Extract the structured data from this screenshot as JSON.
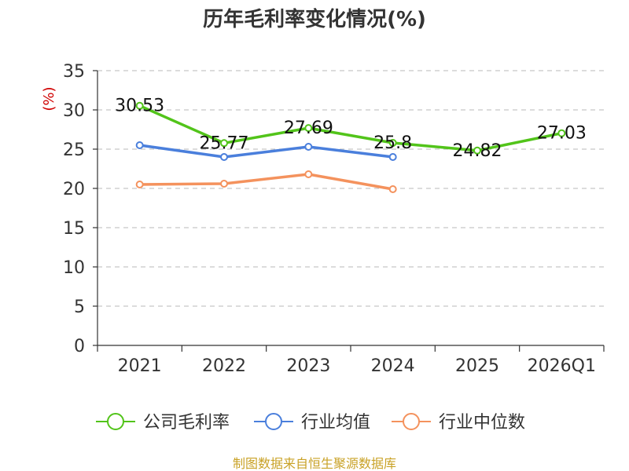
{
  "chart_data": {
    "type": "line",
    "title": "历年毛利率变化情况(%)",
    "ylabel": "(%)",
    "xlabel": "",
    "ylim": [
      0,
      35
    ],
    "yticks": [
      0,
      5,
      10,
      15,
      20,
      25,
      30,
      35
    ],
    "categories": [
      "2021",
      "2022",
      "2023",
      "2024",
      "2025",
      "2026Q1"
    ],
    "grid": true,
    "legend_position": "bottom",
    "series": [
      {
        "name": "公司毛利率",
        "color": "#52c41a",
        "values": [
          30.53,
          25.77,
          27.69,
          25.8,
          24.82,
          27.03
        ],
        "labels": [
          "30.53",
          "25.77",
          "27.69",
          "25.8",
          "24.82",
          "27.03"
        ]
      },
      {
        "name": "行业均值",
        "color": "#4a7fdc",
        "values": [
          25.5,
          24.0,
          25.3,
          24.0,
          null,
          null
        ]
      },
      {
        "name": "行业中位数",
        "color": "#f4925d",
        "values": [
          20.5,
          20.6,
          21.8,
          19.9,
          null,
          null
        ]
      }
    ],
    "unit_color": "#d00000"
  },
  "source": {
    "text": "制图数据来自恒生聚源数据库",
    "color": "#c9a227"
  }
}
